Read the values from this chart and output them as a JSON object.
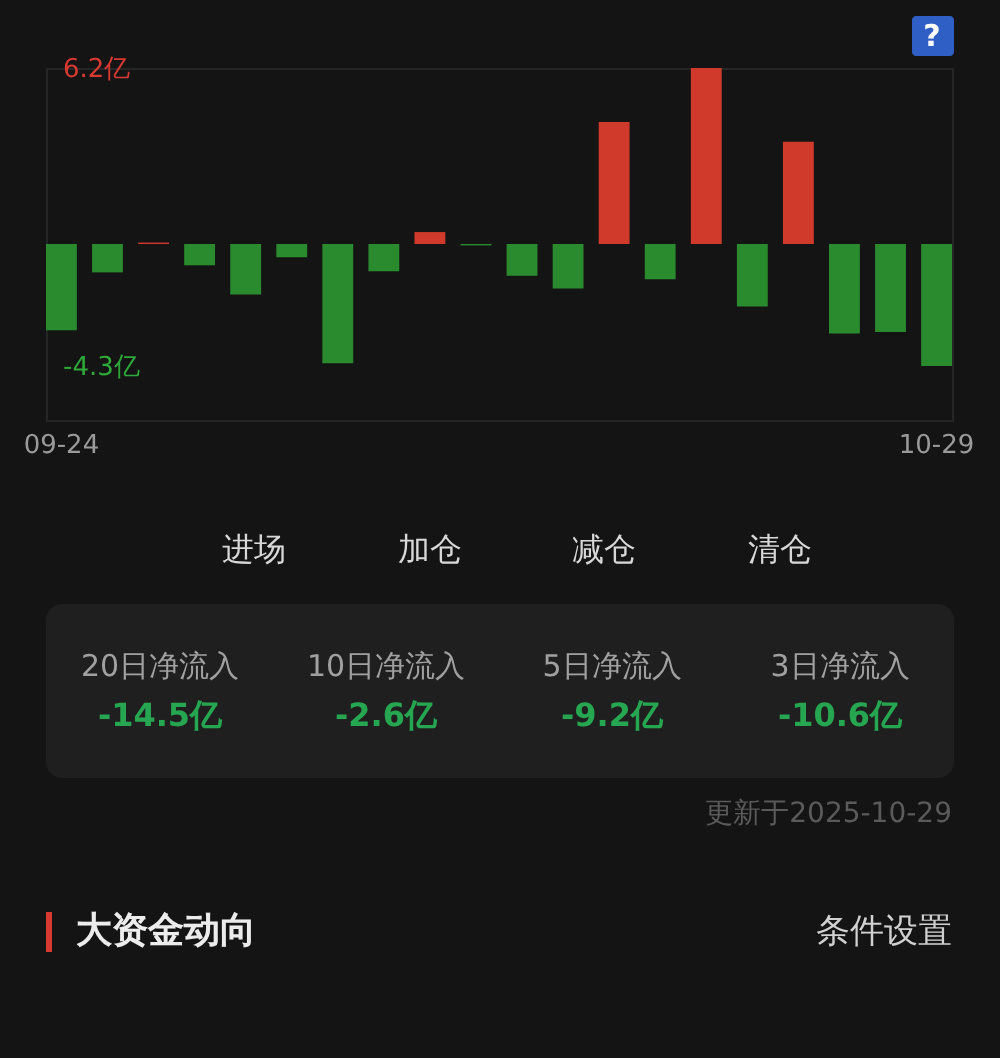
{
  "chart_data": {
    "type": "bar",
    "categories": [
      "09-24",
      null,
      null,
      null,
      null,
      null,
      null,
      null,
      null,
      null,
      null,
      null,
      null,
      null,
      null,
      null,
      null,
      null,
      null,
      "10-29"
    ],
    "values": [
      -3.04,
      -1.0,
      0.05,
      -0.75,
      -1.78,
      -0.47,
      -4.2,
      -0.96,
      0.42,
      -0.05,
      -1.12,
      -1.57,
      4.3,
      -1.24,
      6.2,
      -2.2,
      3.6,
      -3.15,
      -3.1,
      -4.3
    ],
    "colors": [
      "#2a8a2e",
      "#2a8a2e",
      "#d03a2a",
      "#2a8a2e",
      "#2a8a2e",
      "#2a8a2e",
      "#2a8a2e",
      "#2a8a2e",
      "#d03a2a",
      "#2a8a2e",
      "#2a8a2e",
      "#2a8a2e",
      "#d03a2a",
      "#2a8a2e",
      "#d03a2a",
      "#2a8a2e",
      "#d03a2a",
      "#2a8a2e",
      "#2a8a2e",
      "#2a8a2e"
    ],
    "ylim": [
      -6.2,
      6.2
    ],
    "yticks": [
      {
        "value": 6.2,
        "label": "6.2亿"
      },
      {
        "value": -4.3,
        "label": "-4.3亿"
      }
    ],
    "grid": false,
    "annotations": [
      "?",
      "进场",
      "加仓",
      "减仓",
      "清仓",
      "20日净流入",
      "-14.5亿",
      "10日净流入",
      "-2.6亿",
      "5日净流入",
      "-9.2亿",
      "3日净流入",
      "-10.6亿",
      "更新于2025-10-29",
      "大资金动向",
      "条件设置"
    ]
  }
}
